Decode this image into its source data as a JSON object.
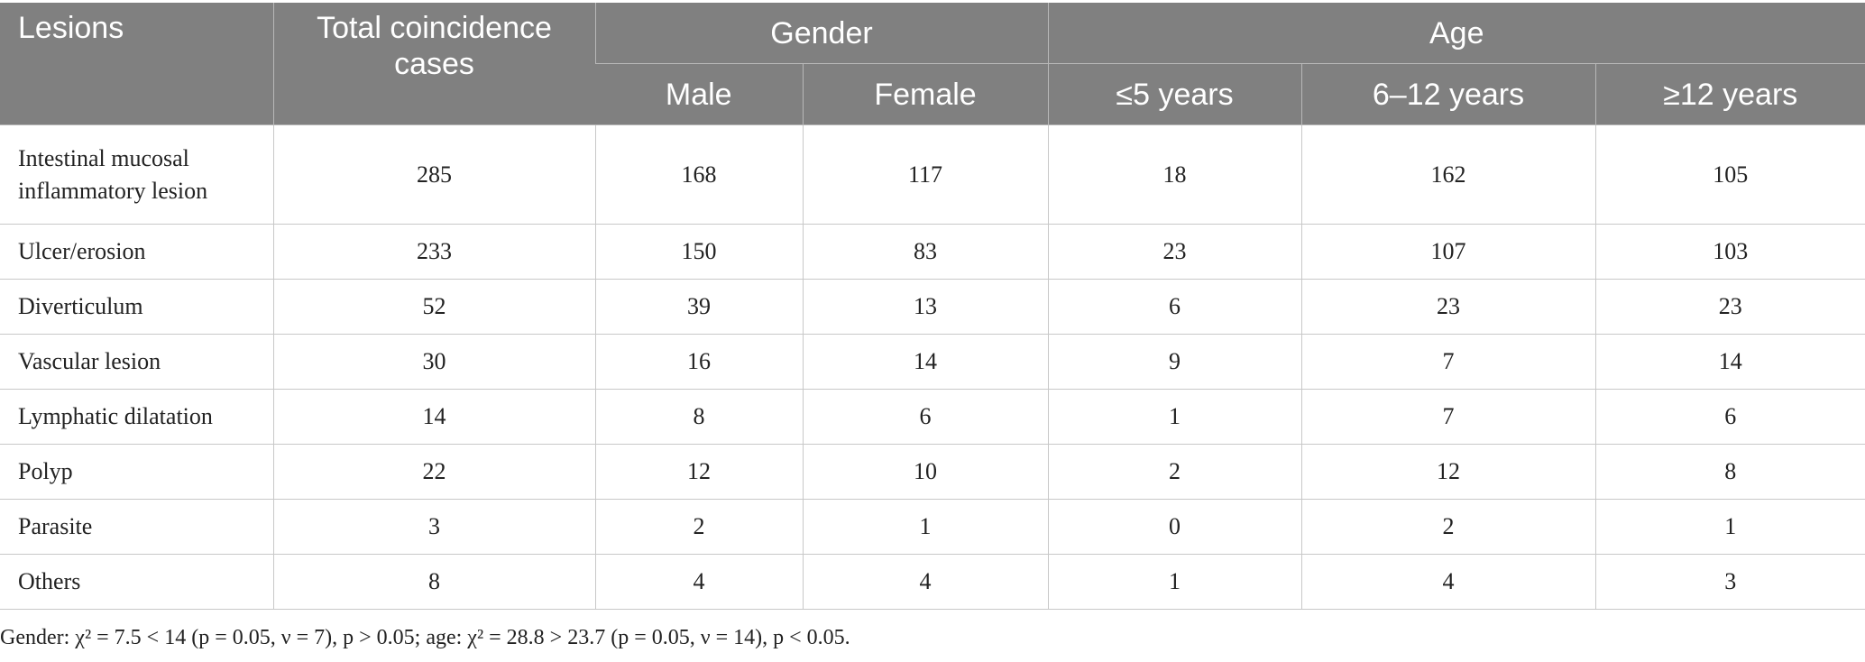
{
  "table": {
    "header": {
      "lesions": "Lesions",
      "total": "Total coincidence cases",
      "gender": "Gender",
      "age": "Age",
      "male": "Male",
      "female": "Female",
      "age_le5": "≤5 years",
      "age_6_12": "6–12 years",
      "age_ge12": "≥12 years"
    },
    "rows": [
      {
        "lesion": "Intestinal mucosal inflammatory lesion",
        "total": "285",
        "male": "168",
        "female": "117",
        "le5": "18",
        "a6_12": "162",
        "ge12": "105"
      },
      {
        "lesion": "Ulcer/erosion",
        "total": "233",
        "male": "150",
        "female": "83",
        "le5": "23",
        "a6_12": "107",
        "ge12": "103"
      },
      {
        "lesion": "Diverticulum",
        "total": "52",
        "male": "39",
        "female": "13",
        "le5": "6",
        "a6_12": "23",
        "ge12": "23"
      },
      {
        "lesion": "Vascular lesion",
        "total": "30",
        "male": "16",
        "female": "14",
        "le5": "9",
        "a6_12": "7",
        "ge12": "14"
      },
      {
        "lesion": "Lymphatic dilatation",
        "total": "14",
        "male": "8",
        "female": "6",
        "le5": "1",
        "a6_12": "7",
        "ge12": "6"
      },
      {
        "lesion": "Polyp",
        "total": "22",
        "male": "12",
        "female": "10",
        "le5": "2",
        "a6_12": "12",
        "ge12": "8"
      },
      {
        "lesion": "Parasite",
        "total": "3",
        "male": "2",
        "female": "1",
        "le5": "0",
        "a6_12": "2",
        "ge12": "1"
      },
      {
        "lesion": "Others",
        "total": "8",
        "male": "4",
        "female": "4",
        "le5": "1",
        "a6_12": "4",
        "ge12": "3"
      }
    ]
  },
  "footnote": "Gender: χ² = 7.5 < 14 (p = 0.05, ν = 7), p > 0.05; age: χ² = 28.8 > 23.7 (p = 0.05, ν = 14), p < 0.05."
}
